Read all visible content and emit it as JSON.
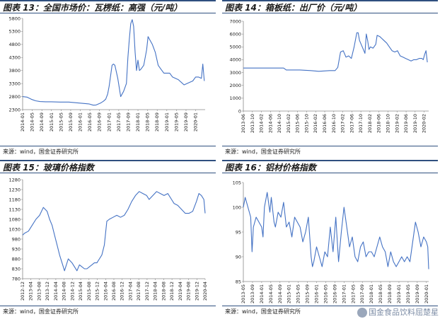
{
  "panels": [
    {
      "title": "图表 13：全国市场价：瓦楞纸：高强（元/吨）",
      "source": "来源：wind，国金证券研究所"
    },
    {
      "title": "图表 14：箱板纸：出厂价（元/吨）",
      "source": "来源：wind，国金证券研究所"
    },
    {
      "title": "图表 15：玻璃价格指数",
      "source": "来源：wind，国金证券研究所"
    },
    {
      "title": "图表 16：铝材价格指数",
      "source": "来源：wind，国金证券研究所"
    }
  ],
  "watermark": "国金食品饮料屈楚星",
  "colors": {
    "line": "#4472c4",
    "rule": "#2f4f7f",
    "axis": "#888888"
  },
  "chart_data": [
    {
      "type": "line",
      "title": "图表 13：全国市场价：瓦楞纸：高强（元/吨）",
      "ylim": [
        2300,
        5800
      ],
      "yticks": [
        2300,
        2800,
        3300,
        3800,
        4300,
        4800,
        5300,
        5800
      ],
      "xlim": [
        2014.0,
        2020.33
      ],
      "xticks": [
        "2014-01",
        "2014-05",
        "2014-09",
        "2015-01",
        "2015-05",
        "2015-09",
        "2016-01",
        "2016-05",
        "2016-09",
        "2017-01",
        "2017-05",
        "2017-09",
        "2018-01",
        "2018-05",
        "2018-09",
        "2019-01",
        "2019-05",
        "2019-09",
        "2020-01"
      ],
      "xtick_pos": [
        2014.0,
        2014.333,
        2014.667,
        2015.0,
        2015.333,
        2015.667,
        2016.0,
        2016.333,
        2016.667,
        2017.0,
        2017.333,
        2017.667,
        2018.0,
        2018.333,
        2018.667,
        2019.0,
        2019.333,
        2019.667,
        2020.0
      ],
      "series": [
        {
          "x": [
            2014.0,
            2014.15,
            2014.3,
            2014.45,
            2014.6,
            2014.8,
            2015.0,
            2015.3,
            2015.6,
            2015.9,
            2016.1,
            2016.3,
            2016.45,
            2016.55,
            2016.7,
            2016.8,
            2016.88,
            2016.95,
            2017.0,
            2017.1,
            2017.15,
            2017.2,
            2017.3,
            2017.4,
            2017.5,
            2017.6,
            2017.65,
            2017.7,
            2017.75,
            2017.8,
            2017.85,
            2017.9,
            2017.95,
            2018.0,
            2018.05,
            2018.1,
            2018.2,
            2018.3,
            2018.35,
            2018.4,
            2018.5,
            2018.6,
            2018.7,
            2018.8,
            2018.9,
            2019.0,
            2019.1,
            2019.2,
            2019.3,
            2019.4,
            2019.5,
            2019.6,
            2019.7,
            2019.8,
            2019.9,
            2020.0,
            2020.1,
            2020.2,
            2020.25,
            2020.3
          ],
          "y": [
            2800,
            2780,
            2700,
            2640,
            2610,
            2600,
            2600,
            2590,
            2590,
            2560,
            2540,
            2520,
            2470,
            2480,
            2550,
            2620,
            2700,
            2900,
            3200,
            4000,
            4050,
            4000,
            3500,
            2800,
            3000,
            3300,
            4300,
            5000,
            5600,
            5750,
            5500,
            4500,
            3800,
            4200,
            3800,
            3850,
            4000,
            4600,
            5100,
            5000,
            4800,
            4500,
            4000,
            3850,
            3700,
            3700,
            3700,
            3550,
            3500,
            3450,
            3350,
            3250,
            3300,
            3350,
            3400,
            3550,
            3550,
            3500,
            4050,
            3400
          ]
        }
      ]
    },
    {
      "type": "line",
      "title": "图表 14：箱板纸：出厂价（元/吨）",
      "ylim": [
        0,
        7000
      ],
      "yticks": [
        0,
        1000,
        2000,
        3000,
        4000,
        5000,
        6000,
        7000
      ],
      "xlim": [
        2013.417,
        2020.25
      ],
      "xticks": [
        "2013-06",
        "2013-10",
        "2014-02",
        "2014-06",
        "2014-10",
        "2015-02",
        "2015-06",
        "2015-10",
        "2016-02",
        "2016-06",
        "2016-10",
        "2017-02",
        "2017-06",
        "2017-10",
        "2018-02",
        "2018-06",
        "2018-10",
        "2019-02",
        "2019-06",
        "2019-10",
        "2020-02"
      ],
      "xtick_pos": [
        2013.417,
        2013.75,
        2014.083,
        2014.417,
        2014.75,
        2015.083,
        2015.417,
        2015.75,
        2016.083,
        2016.417,
        2016.75,
        2017.083,
        2017.417,
        2017.75,
        2018.083,
        2018.417,
        2018.75,
        2019.083,
        2019.417,
        2019.75,
        2020.083
      ],
      "series": [
        {
          "x": [
            2013.417,
            2014.0,
            2014.5,
            2014.9,
            2015.0,
            2015.5,
            2015.9,
            2016.2,
            2016.6,
            2016.8,
            2016.9,
            2017.0,
            2017.1,
            2017.2,
            2017.3,
            2017.4,
            2017.5,
            2017.6,
            2017.65,
            2017.7,
            2017.8,
            2017.9,
            2017.95,
            2018.0,
            2018.05,
            2018.1,
            2018.2,
            2018.3,
            2018.35,
            2018.45,
            2018.5,
            2018.6,
            2018.7,
            2018.8,
            2018.9,
            2019.0,
            2019.1,
            2019.2,
            2019.3,
            2019.4,
            2019.5,
            2019.6,
            2019.7,
            2019.8,
            2019.9,
            2020.0,
            2020.05,
            2020.1,
            2020.15,
            2020.2
          ],
          "y": [
            3350,
            3350,
            3350,
            3350,
            3200,
            3200,
            3150,
            3100,
            3150,
            3150,
            3400,
            4600,
            4700,
            4200,
            4300,
            4100,
            5000,
            6100,
            6100,
            5500,
            5000,
            4500,
            6000,
            5500,
            4800,
            5000,
            4900,
            5200,
            5900,
            5800,
            5700,
            5500,
            5300,
            5000,
            4700,
            4600,
            4700,
            4300,
            4200,
            4100,
            4000,
            3900,
            4000,
            4000,
            4100,
            4100,
            4000,
            4400,
            4700,
            3800
          ]
        }
      ]
    },
    {
      "type": "line",
      "title": "图表 15：玻璃价格指数",
      "ylim": [
        780,
        1280
      ],
      "yticks": [
        780,
        830,
        880,
        930,
        980,
        1030,
        1080,
        1130,
        1180,
        1230,
        1280
      ],
      "xlim": [
        2012.917,
        2020.25
      ],
      "xticks": [
        "2012-12",
        "2013-04",
        "2013-08",
        "2013-12",
        "2014-04",
        "2014-08",
        "2014-12",
        "2015-04",
        "2015-08",
        "2015-12",
        "2016-04",
        "2016-08",
        "2016-12",
        "2017-04",
        "2017-08",
        "2017-12",
        "2018-04",
        "2018-08",
        "2018-12",
        "2019-04",
        "2019-08",
        "2019-12",
        "2020-04"
      ],
      "xtick_pos": [
        2012.917,
        2013.25,
        2013.583,
        2013.917,
        2014.25,
        2014.583,
        2014.917,
        2015.25,
        2015.583,
        2015.917,
        2016.25,
        2016.583,
        2016.917,
        2017.25,
        2017.583,
        2017.917,
        2018.25,
        2018.583,
        2018.917,
        2019.25,
        2019.583,
        2019.917,
        2020.25
      ],
      "series": [
        {
          "x": [
            2012.917,
            2013.0,
            2013.15,
            2013.3,
            2013.45,
            2013.6,
            2013.75,
            2013.9,
            2014.0,
            2014.1,
            2014.2,
            2014.3,
            2014.4,
            2014.5,
            2014.6,
            2014.75,
            2014.9,
            2015.0,
            2015.1,
            2015.2,
            2015.3,
            2015.4,
            2015.5,
            2015.6,
            2015.7,
            2015.8,
            2015.9,
            2016.0,
            2016.1,
            2016.2,
            2016.3,
            2016.4,
            2016.55,
            2016.7,
            2016.85,
            2017.0,
            2017.15,
            2017.3,
            2017.45,
            2017.6,
            2017.75,
            2017.9,
            2018.0,
            2018.15,
            2018.3,
            2018.45,
            2018.6,
            2018.75,
            2018.9,
            2019.0,
            2019.15,
            2019.3,
            2019.45,
            2019.6,
            2019.75,
            2019.9,
            2020.0,
            2020.1,
            2020.2,
            2020.25
          ],
          "y": [
            1000,
            1010,
            1020,
            1050,
            1080,
            1100,
            1140,
            1120,
            1080,
            1050,
            1000,
            950,
            900,
            860,
            820,
            880,
            860,
            840,
            820,
            850,
            840,
            830,
            830,
            840,
            850,
            860,
            860,
            880,
            900,
            950,
            1070,
            1080,
            1090,
            1100,
            1090,
            1100,
            1130,
            1170,
            1200,
            1220,
            1210,
            1200,
            1180,
            1200,
            1220,
            1210,
            1200,
            1210,
            1180,
            1160,
            1150,
            1130,
            1110,
            1110,
            1120,
            1170,
            1210,
            1200,
            1180,
            1110
          ]
        }
      ]
    },
    {
      "type": "line",
      "title": "图表 16：铝材价格指数",
      "ylim": [
        85,
        105
      ],
      "yticks": [
        85,
        90,
        95,
        100,
        105
      ],
      "xlim": [
        2013.333,
        2020.083
      ],
      "xticks": [
        "2013-05",
        "2013-09",
        "2014-01",
        "2014-05",
        "2014-09",
        "2015-01",
        "2015-05",
        "2015-09",
        "2016-01",
        "2016-05",
        "2016-09",
        "2017-01",
        "2017-05",
        "2017-09",
        "2018-01",
        "2018-05",
        "2018-09",
        "2019-01",
        "2019-05",
        "2019-09",
        "2020-01"
      ],
      "xtick_pos": [
        2013.333,
        2013.667,
        2014.0,
        2014.333,
        2014.667,
        2015.0,
        2015.333,
        2015.667,
        2016.0,
        2016.333,
        2016.667,
        2017.0,
        2017.333,
        2017.667,
        2018.0,
        2018.333,
        2018.667,
        2019.0,
        2019.333,
        2019.667,
        2020.0
      ],
      "series": [
        {
          "x": [
            2013.333,
            2013.4,
            2013.5,
            2013.6,
            2013.65,
            2013.7,
            2013.8,
            2013.9,
            2014.0,
            2014.05,
            2014.1,
            2014.2,
            2014.3,
            2014.35,
            2014.45,
            2014.5,
            2014.6,
            2014.7,
            2014.8,
            2014.9,
            2015.0,
            2015.1,
            2015.2,
            2015.3,
            2015.4,
            2015.5,
            2015.6,
            2015.7,
            2015.8,
            2015.85,
            2015.9,
            2016.0,
            2016.1,
            2016.2,
            2016.3,
            2016.4,
            2016.5,
            2016.6,
            2016.7,
            2016.8,
            2016.9,
            2017.0,
            2017.1,
            2017.2,
            2017.3,
            2017.4,
            2017.5,
            2017.6,
            2017.7,
            2017.8,
            2017.9,
            2018.0,
            2018.1,
            2018.2,
            2018.3,
            2018.4,
            2018.5,
            2018.6,
            2018.7,
            2018.8,
            2018.9,
            2019.0,
            2019.1,
            2019.2,
            2019.3,
            2019.4,
            2019.5,
            2019.6,
            2019.7,
            2019.8,
            2019.9,
            2020.0,
            2020.05,
            2020.083
          ],
          "y": [
            100,
            102,
            100,
            98,
            91,
            96,
            98,
            97,
            96,
            94,
            100,
            103,
            99,
            102,
            97,
            96,
            99,
            98,
            101,
            96,
            97,
            94,
            98,
            97,
            96,
            93,
            95,
            98,
            90,
            88,
            89,
            92,
            90,
            88,
            91,
            90,
            96,
            91,
            98,
            89,
            95,
            100,
            96,
            92,
            94,
            90,
            89,
            92,
            93,
            90,
            91,
            91,
            90,
            92,
            94,
            92,
            91,
            88,
            91,
            89,
            88,
            89,
            90,
            89,
            90,
            89,
            93,
            97,
            95,
            92,
            94,
            93,
            92,
            87.5
          ]
        }
      ]
    }
  ]
}
